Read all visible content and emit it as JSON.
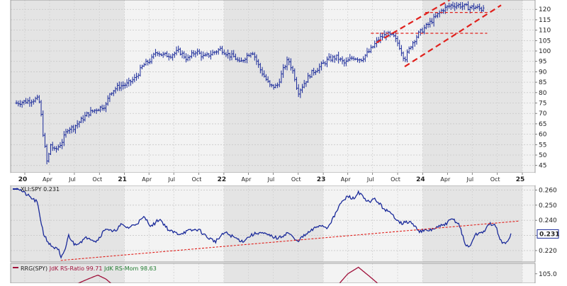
{
  "chart_data": [
    {
      "type": "ohlc",
      "panel": "price",
      "y_axis": {
        "ticks": [
          "45",
          "50",
          "55",
          "60",
          "65",
          "70",
          "75",
          "80",
          "85",
          "90",
          "95",
          "100",
          "105",
          "110",
          "115",
          "120"
        ],
        "ylim": [
          41.5,
          124.5
        ]
      },
      "x_axis": {
        "start_month": "2020-01",
        "end_month": "2025-01",
        "labels": [
          {
            "text": "20",
            "month": "2020-01",
            "year": true
          },
          {
            "text": "Apr",
            "month": "2020-04"
          },
          {
            "text": "Jul",
            "month": "2020-07"
          },
          {
            "text": "Oct",
            "month": "2020-10"
          },
          {
            "text": "21",
            "month": "2021-01",
            "year": true
          },
          {
            "text": "Apr",
            "month": "2021-04"
          },
          {
            "text": "Jul",
            "month": "2021-07"
          },
          {
            "text": "Oct",
            "month": "2021-10"
          },
          {
            "text": "22",
            "month": "2022-01",
            "year": true
          },
          {
            "text": "Apr",
            "month": "2022-04"
          },
          {
            "text": "Jul",
            "month": "2022-07"
          },
          {
            "text": "Oct",
            "month": "2022-10"
          },
          {
            "text": "23",
            "month": "2023-01",
            "year": true
          },
          {
            "text": "Apr",
            "month": "2023-04"
          },
          {
            "text": "Jul",
            "month": "2023-07"
          },
          {
            "text": "Oct",
            "month": "2023-10"
          },
          {
            "text": "24",
            "month": "2024-01",
            "year": true
          },
          {
            "text": "Apr",
            "month": "2024-04"
          },
          {
            "text": "Jul",
            "month": "2024-07"
          },
          {
            "text": "Oct",
            "month": "2024-10"
          },
          {
            "text": "25",
            "month": "2025-01",
            "year": true
          }
        ]
      },
      "anchors": [
        [
          "2019-12-01",
          75
        ],
        [
          "2020-01-15",
          76
        ],
        [
          "2020-02-15",
          77
        ],
        [
          "2020-02-25",
          75
        ],
        [
          "2020-03-10",
          58
        ],
        [
          "2020-03-23",
          46
        ],
        [
          "2020-04-05",
          55
        ],
        [
          "2020-04-20",
          52
        ],
        [
          "2020-05-15",
          56
        ],
        [
          "2020-06-08",
          63
        ],
        [
          "2020-06-25",
          63
        ],
        [
          "2020-07-20",
          66
        ],
        [
          "2020-08-20",
          70
        ],
        [
          "2020-09-20",
          72
        ],
        [
          "2020-10-25",
          74
        ],
        [
          "2020-11-09",
          80
        ],
        [
          "2020-12-10",
          83
        ],
        [
          "2021-01-10",
          84
        ],
        [
          "2021-02-10",
          87
        ],
        [
          "2021-03-10",
          93
        ],
        [
          "2021-04-10",
          96
        ],
        [
          "2021-04-28",
          100
        ],
        [
          "2021-05-20",
          98
        ],
        [
          "2021-06-20",
          98
        ],
        [
          "2021-07-20",
          100
        ],
        [
          "2021-08-20",
          96
        ],
        [
          "2021-09-20",
          100
        ],
        [
          "2021-10-20",
          97
        ],
        [
          "2021-11-20",
          99
        ],
        [
          "2021-12-20",
          101
        ],
        [
          "2022-01-20",
          98
        ],
        [
          "2022-02-10",
          97
        ],
        [
          "2022-02-28",
          94
        ],
        [
          "2022-03-20",
          97
        ],
        [
          "2022-04-15",
          100
        ],
        [
          "2022-05-15",
          91
        ],
        [
          "2022-06-20",
          83
        ],
        [
          "2022-07-15",
          83
        ],
        [
          "2022-08-10",
          92
        ],
        [
          "2022-08-25",
          96
        ],
        [
          "2022-09-15",
          89
        ],
        [
          "2022-09-30",
          80
        ],
        [
          "2022-10-20",
          84
        ],
        [
          "2022-11-15",
          89
        ],
        [
          "2022-12-15",
          92
        ],
        [
          "2023-01-20",
          96
        ],
        [
          "2023-02-20",
          97
        ],
        [
          "2023-03-20",
          94
        ],
        [
          "2023-04-20",
          97
        ],
        [
          "2023-05-20",
          96
        ],
        [
          "2023-06-20",
          100
        ],
        [
          "2023-07-25",
          106
        ],
        [
          "2023-08-20",
          108
        ],
        [
          "2023-09-15",
          107
        ],
        [
          "2023-10-05",
          103
        ],
        [
          "2023-10-27",
          96
        ],
        [
          "2023-11-20",
          103
        ],
        [
          "2023-12-15",
          108
        ],
        [
          "2024-01-15",
          112
        ],
        [
          "2024-02-15",
          116
        ],
        [
          "2024-03-15",
          120
        ],
        [
          "2024-04-15",
          122
        ],
        [
          "2024-05-15",
          122
        ],
        [
          "2024-06-15",
          121
        ],
        [
          "2024-07-15",
          121
        ],
        [
          "2024-08-05",
          120
        ],
        [
          "2024-08-15",
          122
        ]
      ],
      "trend_lines": [
        {
          "style": "thick-dash",
          "points": [
            [
              "2023-10-27",
              92.5
            ],
            [
              "2024-10-15",
              122
            ]
          ]
        },
        {
          "style": "thick-dash",
          "points": [
            [
              "2023-07-15",
              104
            ],
            [
              "2024-07-10",
              131.5
            ]
          ]
        },
        {
          "style": "thin-dash",
          "points": [
            [
              "2023-06-25",
              108.5
            ],
            [
              "2024-08-25",
              108.5
            ]
          ]
        },
        {
          "style": "thin-dash",
          "points": [
            [
              "2024-01-10",
              118.5
            ],
            [
              "2024-09-01",
              118.5
            ]
          ]
        }
      ]
    },
    {
      "type": "line",
      "panel": "relative-strength",
      "legend": "XLI:SPY 0.231",
      "last_value": "0.231",
      "y_axis": {
        "ticks": [
          "0.220",
          "0.230",
          "0.240",
          "0.250",
          "0.260"
        ],
        "ylim": [
          0.2125,
          0.263
        ]
      },
      "anchors": [
        [
          "2019-12-01",
          0.262
        ],
        [
          "2020-01-15",
          0.256
        ],
        [
          "2020-02-15",
          0.252
        ],
        [
          "2020-03-10",
          0.231
        ],
        [
          "2020-04-01",
          0.224
        ],
        [
          "2020-05-05",
          0.22
        ],
        [
          "2020-05-12",
          0.214
        ],
        [
          "2020-05-30",
          0.222
        ],
        [
          "2020-06-10",
          0.23
        ],
        [
          "2020-07-01",
          0.224
        ],
        [
          "2020-07-25",
          0.226
        ],
        [
          "2020-08-20",
          0.229
        ],
        [
          "2020-09-20",
          0.226
        ],
        [
          "2020-10-25",
          0.235
        ],
        [
          "2020-11-20",
          0.232
        ],
        [
          "2020-12-20",
          0.237
        ],
        [
          "2021-01-15",
          0.235
        ],
        [
          "2021-02-15",
          0.238
        ],
        [
          "2021-03-15",
          0.242
        ],
        [
          "2021-04-10",
          0.236
        ],
        [
          "2021-05-10",
          0.241
        ],
        [
          "2021-06-15",
          0.233
        ],
        [
          "2021-07-20",
          0.231
        ],
        [
          "2021-08-25",
          0.233
        ],
        [
          "2021-09-30",
          0.234
        ],
        [
          "2021-10-30",
          0.229
        ],
        [
          "2021-12-01",
          0.226
        ],
        [
          "2022-01-05",
          0.232
        ],
        [
          "2022-02-05",
          0.229
        ],
        [
          "2022-03-10",
          0.226
        ],
        [
          "2022-04-10",
          0.23
        ],
        [
          "2022-05-10",
          0.232
        ],
        [
          "2022-06-15",
          0.23
        ],
        [
          "2022-07-20",
          0.228
        ],
        [
          "2022-08-25",
          0.232
        ],
        [
          "2022-09-25",
          0.226
        ],
        [
          "2022-10-25",
          0.23
        ],
        [
          "2022-11-25",
          0.234
        ],
        [
          "2022-12-20",
          0.237
        ],
        [
          "2023-01-15",
          0.235
        ],
        [
          "2023-02-15",
          0.244
        ],
        [
          "2023-03-01",
          0.25
        ],
        [
          "2023-04-01",
          0.256
        ],
        [
          "2023-04-25",
          0.254
        ],
        [
          "2023-05-10",
          0.259
        ],
        [
          "2023-06-10",
          0.252
        ],
        [
          "2023-07-10",
          0.254
        ],
        [
          "2023-08-10",
          0.248
        ],
        [
          "2023-09-15",
          0.243
        ],
        [
          "2023-10-15",
          0.238
        ],
        [
          "2023-11-15",
          0.239
        ],
        [
          "2023-12-20",
          0.233
        ],
        [
          "2024-01-20",
          0.233
        ],
        [
          "2024-02-20",
          0.235
        ],
        [
          "2024-03-20",
          0.237
        ],
        [
          "2024-04-20",
          0.241
        ],
        [
          "2024-05-15",
          0.237
        ],
        [
          "2024-06-05",
          0.224
        ],
        [
          "2024-06-20",
          0.222
        ],
        [
          "2024-07-10",
          0.23
        ],
        [
          "2024-08-15",
          0.233
        ],
        [
          "2024-09-05",
          0.238
        ],
        [
          "2024-09-25",
          0.236
        ],
        [
          "2024-10-15",
          0.226
        ],
        [
          "2024-11-01",
          0.224
        ],
        [
          "2024-11-20",
          0.231
        ]
      ],
      "trend_line": {
        "points": [
          [
            "2020-05-12",
            0.2135
          ],
          [
            "2024-12-20",
            0.2395
          ]
        ]
      }
    },
    {
      "type": "line",
      "panel": "rrg",
      "legend": {
        "prefix": "RRG(SPY)",
        "ratio_label": "JdK RS-Ratio 99.71",
        "mom_label": "JdK RS-Mom 98.63"
      },
      "y_axis": {
        "ticks": [
          "105.0"
        ],
        "ylim": [
          96,
          109
        ]
      },
      "anchors": [
        [
          "2019-12-01",
          97
        ],
        [
          "2020-05-01",
          98
        ],
        [
          "2020-08-20",
          103
        ],
        [
          "2020-09-25",
          104.5
        ],
        [
          "2020-10-25",
          103
        ],
        [
          "2020-12-20",
          98
        ],
        [
          "2022-12-01",
          97
        ],
        [
          "2023-02-10",
          99
        ],
        [
          "2023-04-01",
          105
        ],
        [
          "2023-05-10",
          107.5
        ],
        [
          "2023-06-20",
          104
        ],
        [
          "2023-08-15",
          99
        ],
        [
          "2023-12-01",
          97
        ]
      ]
    }
  ]
}
